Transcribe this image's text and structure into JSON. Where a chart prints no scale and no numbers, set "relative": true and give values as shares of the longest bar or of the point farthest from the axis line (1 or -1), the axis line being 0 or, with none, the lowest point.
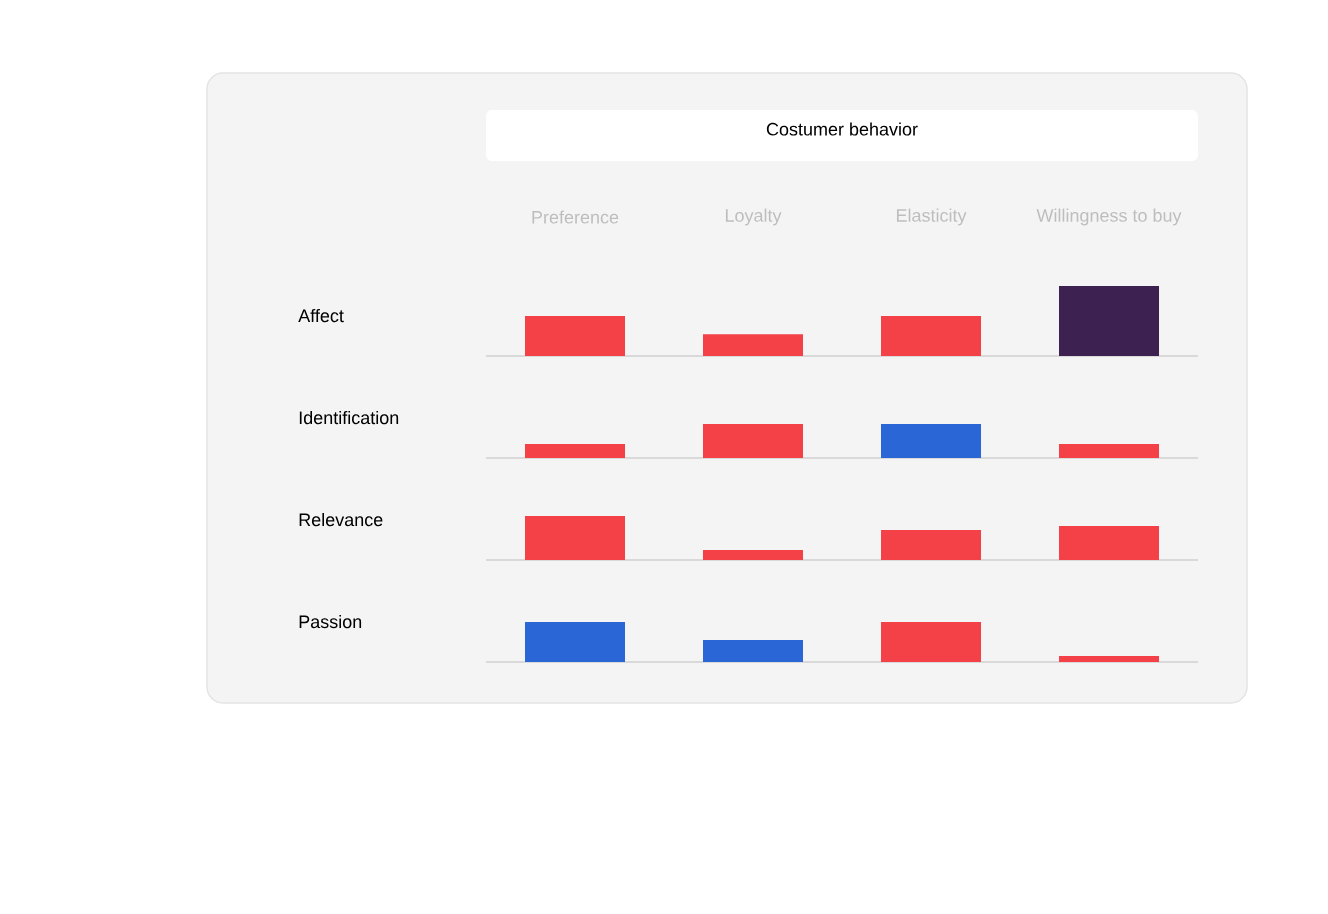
{
  "chart_data": [
    {
      "type": "bar",
      "title": "Costumer behavior",
      "ylabel": "Affect",
      "relative": true,
      "tick_labels": "x",
      "categories": [
        "Preference",
        "Loyalty",
        "Elasticity",
        "Willingness to buy"
      ],
      "values": [
        0.57,
        0.31,
        0.57,
        1
      ],
      "colors": [
        "#f44147",
        "#f44147",
        "#f44147",
        "#3d2251"
      ]
    },
    {
      "type": "bar",
      "ylabel": "Identification",
      "relative": true,
      "categories": [
        null,
        null,
        null,
        null
      ],
      "values": [
        0.41,
        1,
        1,
        0.41
      ],
      "colors": [
        "#f44147",
        "#f44147",
        "#2b66d6",
        "#f44147"
      ]
    },
    {
      "type": "bar",
      "ylabel": "Relevance",
      "relative": true,
      "categories": [
        null,
        null,
        null,
        null
      ],
      "values": [
        1,
        0.23,
        0.68,
        0.77
      ],
      "colors": [
        "#f44147",
        "#f44147",
        "#f44147",
        "#f44147"
      ]
    },
    {
      "type": "bar",
      "ylabel": "Passion",
      "relative": true,
      "categories": [
        null,
        null,
        null,
        null
      ],
      "values": [
        1,
        0.55,
        1,
        0.15
      ],
      "colors": [
        "#2b66d6",
        "#2b66d6",
        "#f44147",
        "#f44147"
      ]
    }
  ]
}
